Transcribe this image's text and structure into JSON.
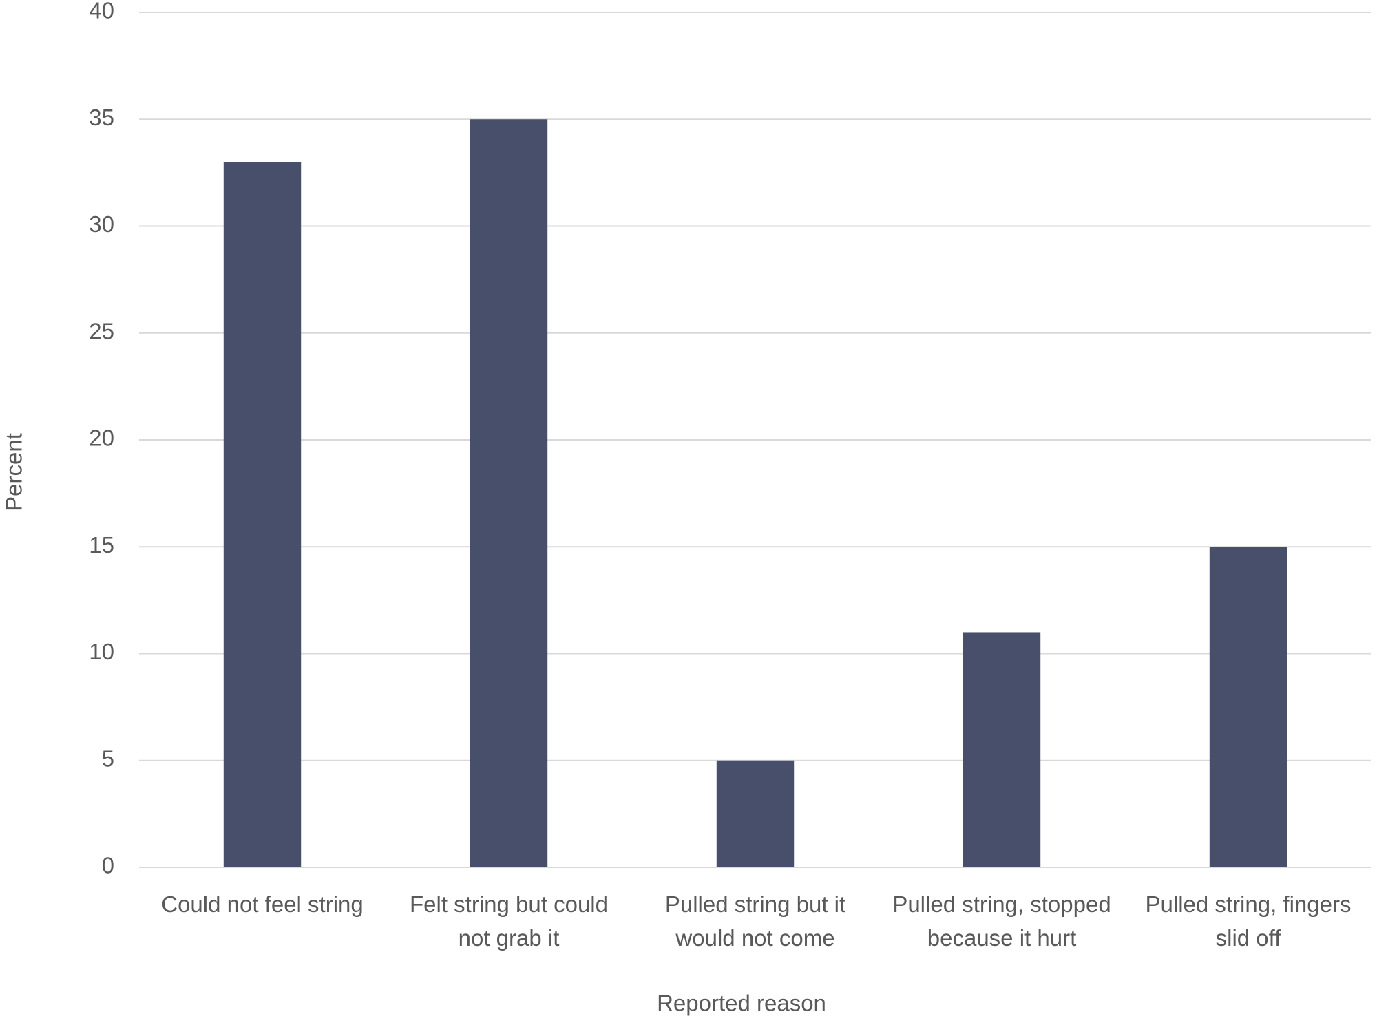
{
  "chart_data": {
    "type": "bar",
    "categories": [
      "Could not feel string",
      "Felt string but could not grab it",
      "Pulled string but it would not come",
      "Pulled string, stopped because it hurt",
      "Pulled string, fingers slid off"
    ],
    "values": [
      33,
      35,
      5,
      11,
      15
    ],
    "color": "#474f6a",
    "ylim": [
      0,
      40
    ],
    "yticks": [
      0,
      5,
      10,
      15,
      20,
      25,
      30,
      35,
      40
    ],
    "grid": true,
    "x_label": "Reported reason",
    "y_label": "Percent"
  }
}
